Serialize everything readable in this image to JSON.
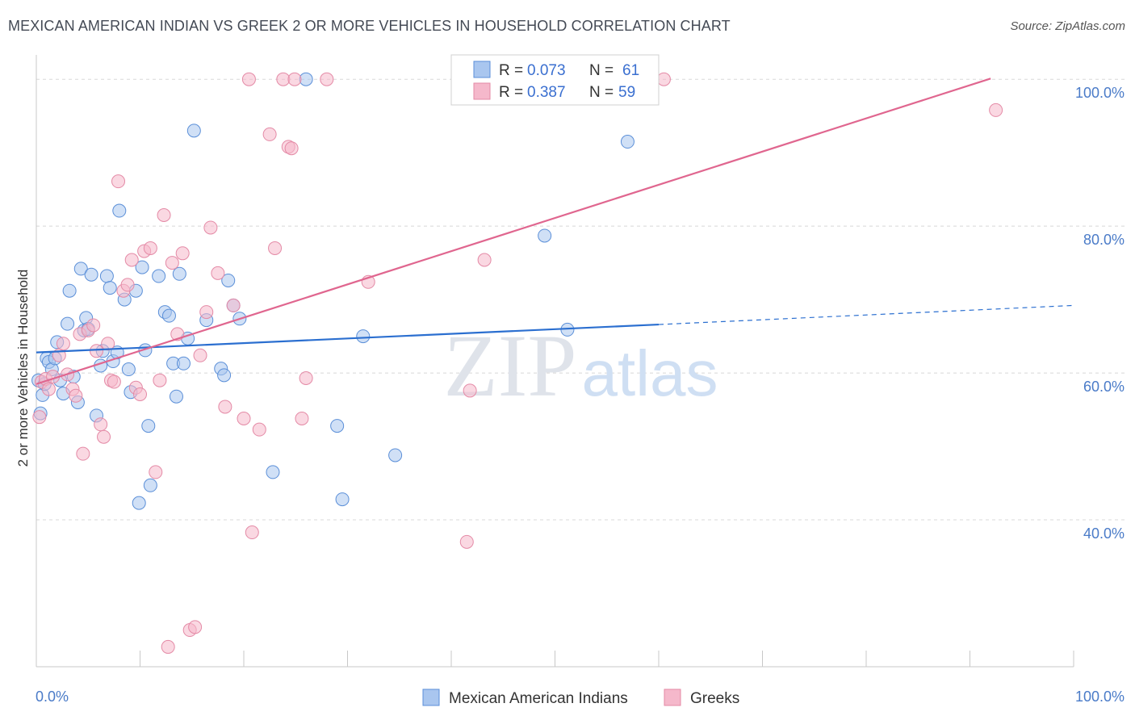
{
  "title": "MEXICAN AMERICAN INDIAN VS GREEK 2 OR MORE VEHICLES IN HOUSEHOLD CORRELATION CHART",
  "source": "Source: ZipAtlas.com",
  "watermark": {
    "zip": "ZIP",
    "atlas": "atlas"
  },
  "colors": {
    "blue_fill": "#a9c6ef",
    "blue_stroke": "#5b8fd8",
    "blue_line": "#2b6fd0",
    "pink_fill": "#f5b8cb",
    "pink_stroke": "#e48aa6",
    "pink_line": "#e0668f",
    "grid": "#d8d8d8",
    "axis_label": "#4a7bc8"
  },
  "legend": {
    "r_label": "R =",
    "n_label": "N =",
    "rows": [
      {
        "series": "Mexican American Indians",
        "r": "0.073",
        "n": "61"
      },
      {
        "series": "Greeks",
        "r": "0.387",
        "n": "59"
      }
    ]
  },
  "chart_data": {
    "type": "scatter",
    "xlabel": "",
    "ylabel": "2 or more Vehicles in Household",
    "xlim": [
      0,
      100
    ],
    "ylim": [
      20,
      102
    ],
    "x_tick_labels": {
      "left": "0.0%",
      "right": "100.0%"
    },
    "y_ticks": [
      {
        "value": 40,
        "label": "40.0%"
      },
      {
        "value": 60,
        "label": "60.0%"
      },
      {
        "value": 80,
        "label": "80.0%"
      },
      {
        "value": 100,
        "label": "100.0%"
      }
    ],
    "grid": "horizontal dashed",
    "legend_position": "top-center",
    "series": [
      {
        "name": "Mexican American Indians",
        "color": "blue",
        "trend": {
          "x0": 0,
          "y0": 62.8,
          "x1": 60,
          "y1": 66.6,
          "dash_to_x": 100,
          "dash_to_y": 69.2
        },
        "points": [
          [
            0.2,
            59.0
          ],
          [
            0.4,
            54.5
          ],
          [
            0.6,
            57.0
          ],
          [
            0.8,
            58.5
          ],
          [
            1.0,
            62.0
          ],
          [
            1.2,
            61.5
          ],
          [
            1.5,
            60.5
          ],
          [
            1.8,
            62.0
          ],
          [
            2.0,
            64.2
          ],
          [
            2.3,
            59.0
          ],
          [
            2.6,
            57.2
          ],
          [
            3.0,
            66.7
          ],
          [
            3.2,
            71.2
          ],
          [
            3.6,
            59.5
          ],
          [
            4.0,
            56.0
          ],
          [
            4.3,
            74.2
          ],
          [
            4.6,
            65.8
          ],
          [
            4.8,
            67.5
          ],
          [
            5.0,
            66.0
          ],
          [
            5.3,
            73.4
          ],
          [
            5.8,
            54.2
          ],
          [
            6.2,
            61.0
          ],
          [
            6.4,
            63.0
          ],
          [
            6.8,
            73.2
          ],
          [
            7.1,
            71.6
          ],
          [
            7.4,
            61.6
          ],
          [
            7.8,
            62.8
          ],
          [
            8.0,
            82.1
          ],
          [
            8.5,
            70.0
          ],
          [
            8.9,
            60.5
          ],
          [
            9.1,
            57.4
          ],
          [
            9.6,
            71.2
          ],
          [
            9.9,
            42.3
          ],
          [
            10.2,
            74.4
          ],
          [
            10.5,
            63.1
          ],
          [
            10.8,
            52.8
          ],
          [
            11.0,
            44.7
          ],
          [
            11.8,
            73.2
          ],
          [
            12.4,
            68.3
          ],
          [
            12.8,
            67.8
          ],
          [
            13.2,
            61.3
          ],
          [
            13.5,
            56.8
          ],
          [
            13.8,
            73.5
          ],
          [
            14.2,
            61.3
          ],
          [
            14.6,
            64.7
          ],
          [
            15.2,
            93.0
          ],
          [
            16.4,
            67.2
          ],
          [
            17.8,
            60.6
          ],
          [
            18.1,
            59.7
          ],
          [
            18.5,
            72.6
          ],
          [
            19.0,
            69.2
          ],
          [
            19.6,
            67.4
          ],
          [
            22.8,
            46.5
          ],
          [
            26.0,
            100.0
          ],
          [
            29.0,
            52.8
          ],
          [
            29.5,
            42.8
          ],
          [
            31.5,
            65.0
          ],
          [
            34.6,
            48.8
          ],
          [
            49.0,
            78.7
          ],
          [
            51.2,
            65.9
          ],
          [
            57.0,
            91.5
          ]
        ]
      },
      {
        "name": "Greeks",
        "color": "pink",
        "trend": {
          "x0": 0,
          "y0": 58.5,
          "x1": 92,
          "y1": 100.1
        },
        "points": [
          [
            0.3,
            54.0
          ],
          [
            0.5,
            58.8
          ],
          [
            0.9,
            59.2
          ],
          [
            1.2,
            57.8
          ],
          [
            1.6,
            59.5
          ],
          [
            2.2,
            62.4
          ],
          [
            2.6,
            64.0
          ],
          [
            3.0,
            59.8
          ],
          [
            3.5,
            57.8
          ],
          [
            3.8,
            56.9
          ],
          [
            4.2,
            65.3
          ],
          [
            4.5,
            49.0
          ],
          [
            5.0,
            65.8
          ],
          [
            5.5,
            66.5
          ],
          [
            5.8,
            63.0
          ],
          [
            6.2,
            53.0
          ],
          [
            6.5,
            51.3
          ],
          [
            6.9,
            64.0
          ],
          [
            7.2,
            59.0
          ],
          [
            7.5,
            58.8
          ],
          [
            7.9,
            86.1
          ],
          [
            8.4,
            71.2
          ],
          [
            8.8,
            72.0
          ],
          [
            9.2,
            75.4
          ],
          [
            9.6,
            58.0
          ],
          [
            10.0,
            57.1
          ],
          [
            10.4,
            76.6
          ],
          [
            11.0,
            77.0
          ],
          [
            11.5,
            46.5
          ],
          [
            11.9,
            59.0
          ],
          [
            12.3,
            81.5
          ],
          [
            12.7,
            22.7
          ],
          [
            13.1,
            75.0
          ],
          [
            13.6,
            65.3
          ],
          [
            14.1,
            76.3
          ],
          [
            14.8,
            25.0
          ],
          [
            15.3,
            25.4
          ],
          [
            15.8,
            62.4
          ],
          [
            16.4,
            68.3
          ],
          [
            16.8,
            79.8
          ],
          [
            17.5,
            73.6
          ],
          [
            18.2,
            55.4
          ],
          [
            19.0,
            69.2
          ],
          [
            20.0,
            53.8
          ],
          [
            20.8,
            38.3
          ],
          [
            21.5,
            52.3
          ],
          [
            22.5,
            92.5
          ],
          [
            23.0,
            77.0
          ],
          [
            24.3,
            90.8
          ],
          [
            24.6,
            90.6
          ],
          [
            25.6,
            53.8
          ],
          [
            26.0,
            59.3
          ],
          [
            28.0,
            100.0
          ],
          [
            32.0,
            72.4
          ],
          [
            41.5,
            37.0
          ],
          [
            41.8,
            57.6
          ],
          [
            43.2,
            75.4
          ],
          [
            60.5,
            100.0
          ],
          [
            92.5,
            95.8
          ]
        ]
      }
    ],
    "top_row_points": {
      "pink_x": [
        20.5,
        23.8,
        24.9,
        56.2
      ],
      "y": 100
    }
  }
}
